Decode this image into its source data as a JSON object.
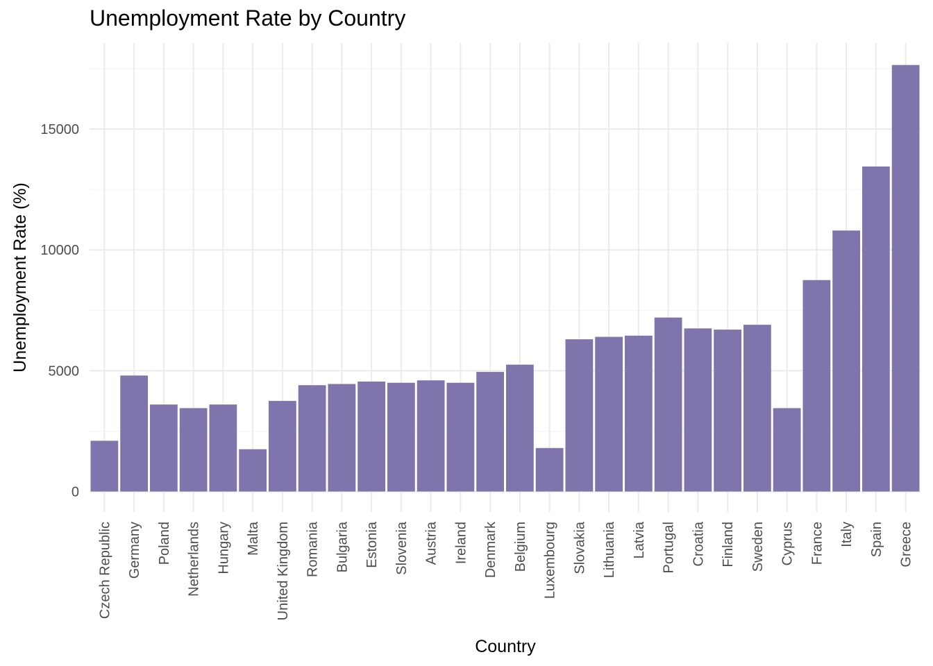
{
  "chart_data": {
    "type": "bar",
    "title": "Unemployment Rate by Country",
    "xlabel": "Country",
    "ylabel": "Unemployment Rate (%)",
    "ylim": [
      -700,
      18500
    ],
    "yticks": [
      0,
      5000,
      10000,
      15000
    ],
    "grid": true,
    "bar_color": "#7f74ac",
    "categories": [
      "Czech Republic",
      "Germany",
      "Poland",
      "Netherlands",
      "Hungary",
      "Malta",
      "United Kingdom",
      "Romania",
      "Bulgaria",
      "Estonia",
      "Slovenia",
      "Austria",
      "Ireland",
      "Denmark",
      "Belgium",
      "Luxembourg",
      "Slovakia",
      "Lithuania",
      "Latvia",
      "Portugal",
      "Croatia",
      "Finland",
      "Sweden",
      "Cyprus",
      "France",
      "Italy",
      "Spain",
      "Greece"
    ],
    "values": [
      2100,
      4800,
      3600,
      3450,
      3600,
      1750,
      3750,
      4400,
      4450,
      4550,
      4500,
      4600,
      4500,
      4950,
      5250,
      1800,
      6300,
      6400,
      6450,
      7200,
      6750,
      6700,
      6900,
      3450,
      8750,
      10800,
      13450,
      17650
    ]
  }
}
